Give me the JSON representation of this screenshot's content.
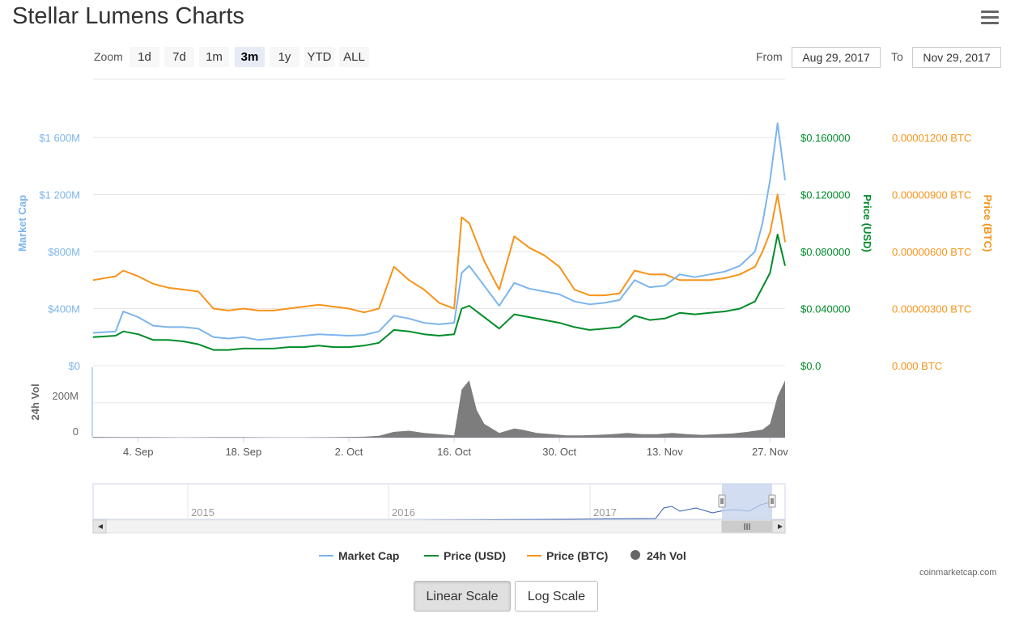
{
  "page": {
    "title": "Stellar Lumens Charts",
    "credit": "coinmarketcap.com"
  },
  "zoom": {
    "label": "Zoom",
    "buttons": [
      "1d",
      "7d",
      "1m",
      "3m",
      "1y",
      "YTD",
      "ALL"
    ],
    "active": "3m"
  },
  "range": {
    "from_label": "From",
    "from_value": "Aug 29, 2017",
    "to_label": "To",
    "to_value": "Nov 29, 2017"
  },
  "legend": {
    "market_cap": "Market Cap",
    "price_usd": "Price (USD)",
    "price_btc": "Price (BTC)",
    "vol": "24h Vol"
  },
  "scale_buttons": {
    "linear": "Linear Scale",
    "log": "Log Scale",
    "active": "linear"
  },
  "colors": {
    "market_cap": "#7cb5ec",
    "price_usd": "#008c2a",
    "price_btc": "#f7931a",
    "vol": "#666666",
    "navigator_fill": "#c4d2ec"
  },
  "chart_data": {
    "type": "line",
    "x_range": [
      "2017-08-29",
      "2017-11-29"
    ],
    "x_ticks": [
      "4. Sep",
      "18. Sep",
      "2. Oct",
      "16. Oct",
      "30. Oct",
      "13. Nov",
      "27. Nov"
    ],
    "x_tick_dates": [
      "2017-09-04",
      "2017-09-18",
      "2017-10-02",
      "2017-10-16",
      "2017-10-30",
      "2017-11-13",
      "2017-11-27"
    ],
    "axes": {
      "market_cap": {
        "label": "Market Cap",
        "ticks": [
          "$0",
          "$400M",
          "$800M",
          "$1 200M",
          "$1 600M"
        ],
        "range": [
          0,
          1600000000
        ]
      },
      "price_usd": {
        "label": "Price (USD)",
        "ticks": [
          "$0.0",
          "$0.040000",
          "$0.080000",
          "$0.120000",
          "$0.160000"
        ],
        "range": [
          0,
          0.16
        ]
      },
      "price_btc": {
        "label": "Price (BTC)",
        "ticks": [
          "0.000 BTC",
          "0.00000300 BTC",
          "0.00000600 BTC",
          "0.00000900 BTC",
          "0.00001200 BTC"
        ],
        "range": [
          0,
          1.2e-05
        ]
      },
      "vol": {
        "label": "24h Vol",
        "ticks": [
          "0",
          "200M"
        ],
        "range": [
          0,
          300000000
        ]
      }
    },
    "series": [
      {
        "name": "Market Cap",
        "x": [
          "2017-08-29",
          "2017-09-01",
          "2017-09-02",
          "2017-09-04",
          "2017-09-06",
          "2017-09-08",
          "2017-09-10",
          "2017-09-12",
          "2017-09-14",
          "2017-09-16",
          "2017-09-18",
          "2017-09-20",
          "2017-09-22",
          "2017-09-24",
          "2017-09-26",
          "2017-09-28",
          "2017-09-30",
          "2017-10-02",
          "2017-10-04",
          "2017-10-06",
          "2017-10-08",
          "2017-10-10",
          "2017-10-12",
          "2017-10-14",
          "2017-10-16",
          "2017-10-17",
          "2017-10-18",
          "2017-10-20",
          "2017-10-22",
          "2017-10-24",
          "2017-10-26",
          "2017-10-28",
          "2017-10-30",
          "2017-11-01",
          "2017-11-03",
          "2017-11-05",
          "2017-11-07",
          "2017-11-09",
          "2017-11-11",
          "2017-11-13",
          "2017-11-15",
          "2017-11-17",
          "2017-11-19",
          "2017-11-21",
          "2017-11-23",
          "2017-11-25",
          "2017-11-26",
          "2017-11-27",
          "2017-11-28",
          "2017-11-29"
        ],
        "values": [
          230,
          240,
          380,
          340,
          280,
          270,
          270,
          260,
          200,
          190,
          200,
          180,
          190,
          200,
          210,
          220,
          215,
          210,
          215,
          240,
          350,
          330,
          300,
          290,
          300,
          650,
          700,
          560,
          420,
          580,
          540,
          520,
          500,
          450,
          430,
          440,
          460,
          600,
          550,
          560,
          640,
          620,
          640,
          660,
          700,
          800,
          1000,
          1300,
          1700,
          1300
        ]
      },
      {
        "name": "Price (USD)",
        "x": [
          "2017-08-29",
          "2017-09-01",
          "2017-09-02",
          "2017-09-04",
          "2017-09-06",
          "2017-09-08",
          "2017-09-10",
          "2017-09-12",
          "2017-09-14",
          "2017-09-16",
          "2017-09-18",
          "2017-09-20",
          "2017-09-22",
          "2017-09-24",
          "2017-09-26",
          "2017-09-28",
          "2017-09-30",
          "2017-10-02",
          "2017-10-04",
          "2017-10-06",
          "2017-10-08",
          "2017-10-10",
          "2017-10-12",
          "2017-10-14",
          "2017-10-16",
          "2017-10-17",
          "2017-10-18",
          "2017-10-20",
          "2017-10-22",
          "2017-10-24",
          "2017-10-26",
          "2017-10-28",
          "2017-10-30",
          "2017-11-01",
          "2017-11-03",
          "2017-11-05",
          "2017-11-07",
          "2017-11-09",
          "2017-11-11",
          "2017-11-13",
          "2017-11-15",
          "2017-11-17",
          "2017-11-19",
          "2017-11-21",
          "2017-11-23",
          "2017-11-25",
          "2017-11-26",
          "2017-11-27",
          "2017-11-28",
          "2017-11-29"
        ],
        "values": [
          0.02,
          0.021,
          0.024,
          0.022,
          0.018,
          0.018,
          0.017,
          0.015,
          0.011,
          0.011,
          0.012,
          0.012,
          0.012,
          0.013,
          0.013,
          0.014,
          0.013,
          0.013,
          0.014,
          0.016,
          0.025,
          0.024,
          0.022,
          0.021,
          0.022,
          0.04,
          0.042,
          0.034,
          0.026,
          0.036,
          0.034,
          0.032,
          0.03,
          0.027,
          0.025,
          0.026,
          0.027,
          0.035,
          0.032,
          0.033,
          0.037,
          0.036,
          0.037,
          0.038,
          0.04,
          0.045,
          0.055,
          0.065,
          0.092,
          0.07
        ]
      },
      {
        "name": "Price (BTC)",
        "x": [
          "2017-08-29",
          "2017-09-01",
          "2017-09-02",
          "2017-09-04",
          "2017-09-06",
          "2017-09-08",
          "2017-09-10",
          "2017-09-12",
          "2017-09-14",
          "2017-09-16",
          "2017-09-18",
          "2017-09-20",
          "2017-09-22",
          "2017-09-24",
          "2017-09-26",
          "2017-09-28",
          "2017-09-30",
          "2017-10-02",
          "2017-10-04",
          "2017-10-06",
          "2017-10-08",
          "2017-10-10",
          "2017-10-12",
          "2017-10-14",
          "2017-10-16",
          "2017-10-17",
          "2017-10-18",
          "2017-10-20",
          "2017-10-22",
          "2017-10-24",
          "2017-10-26",
          "2017-10-28",
          "2017-10-30",
          "2017-11-01",
          "2017-11-03",
          "2017-11-05",
          "2017-11-07",
          "2017-11-09",
          "2017-11-11",
          "2017-11-13",
          "2017-11-15",
          "2017-11-17",
          "2017-11-19",
          "2017-11-21",
          "2017-11-23",
          "2017-11-25",
          "2017-11-26",
          "2017-11-27",
          "2017-11-28",
          "2017-11-29"
        ],
        "values": [
          4.5e-06,
          4.7e-06,
          5e-06,
          4.7e-06,
          4.3e-06,
          4.1e-06,
          4e-06,
          3.9e-06,
          3e-06,
          2.9e-06,
          3e-06,
          2.9e-06,
          2.9e-06,
          3e-06,
          3.1e-06,
          3.2e-06,
          3.1e-06,
          3e-06,
          2.8e-06,
          3e-06,
          5.2e-06,
          4.5e-06,
          4e-06,
          3.3e-06,
          3e-06,
          7.8e-06,
          7.5e-06,
          5.5e-06,
          4e-06,
          6.8e-06,
          6.2e-06,
          5.8e-06,
          5.2e-06,
          4e-06,
          3.7e-06,
          3.7e-06,
          3.8e-06,
          5e-06,
          4.8e-06,
          4.8e-06,
          4.5e-06,
          4.5e-06,
          4.5e-06,
          4.6e-06,
          4.8e-06,
          5.2e-06,
          6e-06,
          7e-06,
          9e-06,
          6.5e-06
        ]
      },
      {
        "name": "24h Vol",
        "x": [
          "2017-08-29",
          "2017-09-02",
          "2017-09-06",
          "2017-09-10",
          "2017-09-14",
          "2017-09-18",
          "2017-09-22",
          "2017-09-26",
          "2017-09-30",
          "2017-10-04",
          "2017-10-06",
          "2017-10-08",
          "2017-10-10",
          "2017-10-12",
          "2017-10-14",
          "2017-10-16",
          "2017-10-17",
          "2017-10-18",
          "2017-10-19",
          "2017-10-20",
          "2017-10-22",
          "2017-10-24",
          "2017-10-25",
          "2017-10-27",
          "2017-10-29",
          "2017-10-31",
          "2017-11-02",
          "2017-11-04",
          "2017-11-06",
          "2017-11-08",
          "2017-11-10",
          "2017-11-12",
          "2017-11-14",
          "2017-11-16",
          "2017-11-18",
          "2017-11-20",
          "2017-11-22",
          "2017-11-24",
          "2017-11-26",
          "2017-11-27",
          "2017-11-28",
          "2017-11-29"
        ],
        "values": [
          3000000,
          2000000,
          2000000,
          1000000,
          2000000,
          2000000,
          1000000,
          1000000,
          2000000,
          4000000,
          8000000,
          25000000,
          30000000,
          20000000,
          15000000,
          10000000,
          210000000,
          250000000,
          120000000,
          60000000,
          20000000,
          40000000,
          35000000,
          20000000,
          15000000,
          10000000,
          10000000,
          12000000,
          15000000,
          20000000,
          15000000,
          15000000,
          20000000,
          15000000,
          12000000,
          15000000,
          18000000,
          25000000,
          35000000,
          60000000,
          180000000,
          250000000
        ]
      }
    ],
    "navigator": {
      "x_ticks": [
        "2015",
        "2016",
        "2017"
      ]
    },
    "grid": true
  }
}
